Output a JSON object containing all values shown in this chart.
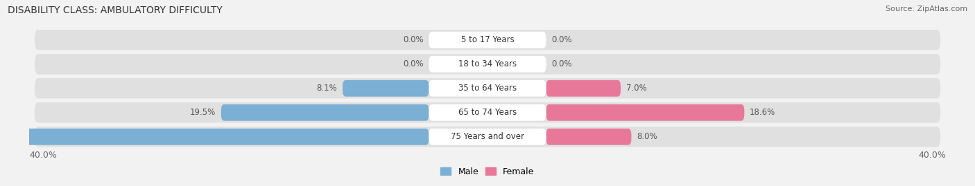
{
  "title": "DISABILITY CLASS: AMBULATORY DIFFICULTY",
  "source": "Source: ZipAtlas.com",
  "categories": [
    "5 to 17 Years",
    "18 to 34 Years",
    "35 to 64 Years",
    "65 to 74 Years",
    "75 Years and over"
  ],
  "male_values": [
    0.0,
    0.0,
    8.1,
    19.5,
    40.0
  ],
  "female_values": [
    0.0,
    0.0,
    7.0,
    18.6,
    8.0
  ],
  "male_color": "#7bafd4",
  "female_color": "#e8789a",
  "male_label": "Male",
  "female_label": "Female",
  "max_val": 40.0,
  "bg_color": "#f2f2f2",
  "row_bg_color": "#e0e0e0",
  "center_bg_color": "#ffffff",
  "title_fontsize": 10,
  "source_fontsize": 8,
  "axis_label_fontsize": 9,
  "bar_label_fontsize": 8.5,
  "cat_fontsize": 8.5
}
